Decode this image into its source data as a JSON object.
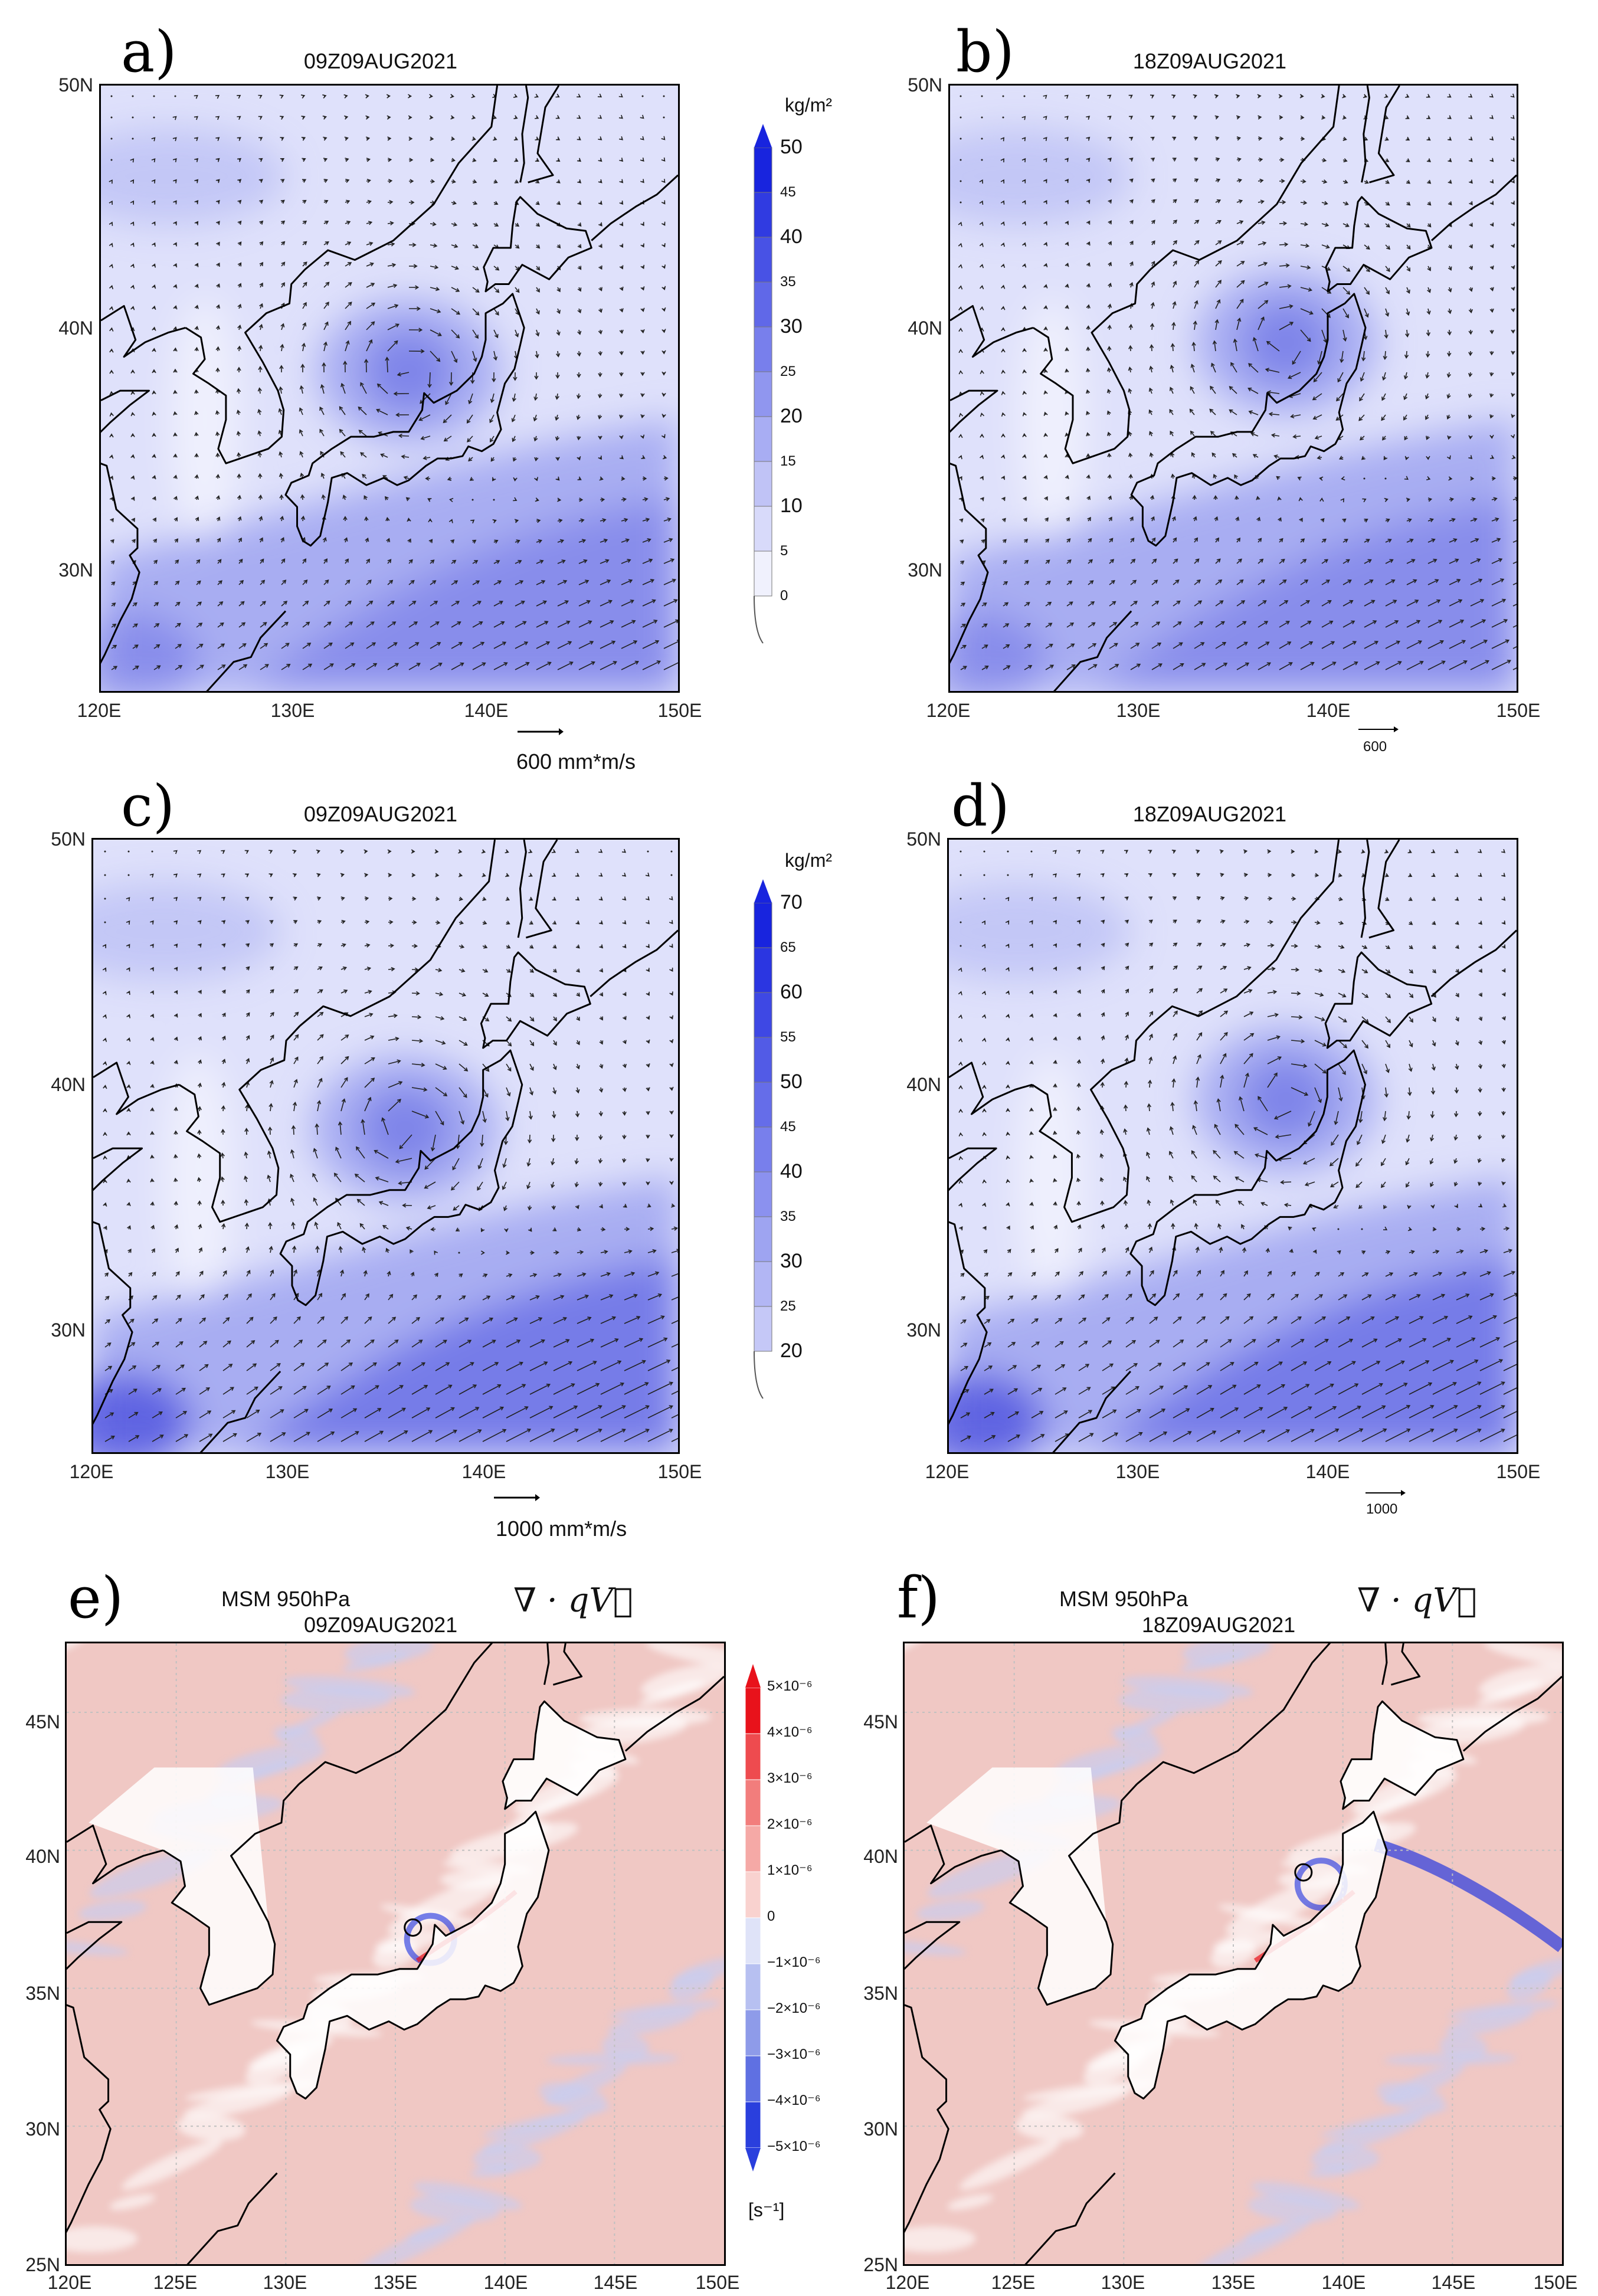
{
  "panels": [
    {
      "id": "a",
      "label": "a)",
      "title": "09Z09AUG2021",
      "field": "pw",
      "yticks": [
        "50N",
        "40N",
        "30N"
      ],
      "xticks": [
        "120E",
        "130E",
        "140E",
        "150E"
      ],
      "ref_vector": "600 mm*m/s",
      "scale": 1
    },
    {
      "id": "b",
      "label": "b)",
      "title": "18Z09AUG2021",
      "field": "pw",
      "yticks": [
        "50N",
        "40N",
        "30N"
      ],
      "xticks": [
        "120E",
        "130E",
        "140E",
        "150E"
      ],
      "ref_vector": "600",
      "scale": 1.05
    },
    {
      "id": "c",
      "label": "c)",
      "title": "09Z09AUG2021",
      "field": "pw2",
      "yticks": [
        "50N",
        "40N",
        "30N"
      ],
      "xticks": [
        "120E",
        "130E",
        "140E",
        "150E"
      ],
      "ref_vector": "1000 mm*m/s",
      "scale": 1.4
    },
    {
      "id": "d",
      "label": "d)",
      "title": "18Z09AUG2021",
      "field": "pw2",
      "yticks": [
        "50N",
        "40N",
        "30N"
      ],
      "xticks": [
        "120E",
        "130E",
        "140E",
        "150E"
      ],
      "ref_vector": "1000",
      "scale": 1.45
    },
    {
      "id": "e",
      "label": "e)",
      "title_line1": "MSM 950hPa",
      "title_line2": "09Z09AUG2021",
      "formula": "∇ · qV⃗",
      "field": "div",
      "yticks": [
        "45N",
        "40N",
        "35N",
        "30N",
        "25N"
      ],
      "xticks": [
        "120E",
        "125E",
        "130E",
        "135E",
        "140E",
        "145E",
        "150E"
      ]
    },
    {
      "id": "f",
      "label": "f)",
      "title_line1": "MSM 950hPa",
      "title_line2": "18Z09AUG2021",
      "formula": "∇ · qV⃗",
      "field": "div",
      "yticks": [
        "45N",
        "40N",
        "35N",
        "30N",
        "25N"
      ],
      "xticks": [
        "120E",
        "125E",
        "130E",
        "135E",
        "140E",
        "145E",
        "150E"
      ]
    }
  ],
  "colorbars": [
    {
      "id": "cb1",
      "unit": "kg/m²",
      "major": [
        "50",
        "40",
        "30",
        "20",
        "10"
      ],
      "minor": [
        "45",
        "35",
        "25",
        "15",
        "5",
        "0"
      ]
    },
    {
      "id": "cb2",
      "unit": "kg/m²",
      "major": [
        "70",
        "60",
        "50",
        "40",
        "30",
        "20"
      ],
      "minor": [
        "65",
        "55",
        "45",
        "35",
        "25"
      ]
    },
    {
      "id": "cb3",
      "unit": "[s⁻¹]",
      "labels": [
        "5×10⁻⁶",
        "4×10⁻⁶",
        "3×10⁻⁶",
        "2×10⁻⁶",
        "1×10⁻⁶",
        "0",
        "−1×10⁻⁶",
        "−2×10⁻⁶",
        "−3×10⁻⁶",
        "−4×10⁻⁶",
        "−5×10⁻⁶"
      ]
    }
  ],
  "colors": {
    "pw_light": "#dfe1fb",
    "pw_mid": "#a8adf2",
    "pw_dark": "#6d73e6",
    "pw_deep": "#3e45dc",
    "div_pos": "#f0c8c4",
    "div_pos_strong": "#e8121b",
    "div_neg": "#c5cdf4",
    "div_neg_strong": "#1a2ee0",
    "land_white": "#ffffff",
    "coast": "#000000",
    "grid": "#c0c0c0"
  }
}
